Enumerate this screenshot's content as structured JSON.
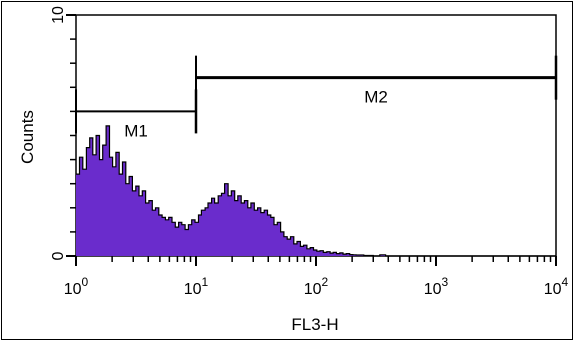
{
  "chart_data": {
    "type": "area",
    "xlabel": "FL3-H",
    "ylabel": "Counts",
    "x_scale": "log",
    "xlim": [
      1,
      10000
    ],
    "ylim": [
      0,
      10
    ],
    "x_ticks": [
      {
        "value": 1,
        "base": "10",
        "exp": "0"
      },
      {
        "value": 10,
        "base": "10",
        "exp": "1"
      },
      {
        "value": 100,
        "base": "10",
        "exp": "2"
      },
      {
        "value": 1000,
        "base": "10",
        "exp": "3"
      },
      {
        "value": 10000,
        "base": "10",
        "exp": "4"
      }
    ],
    "y_ticks": [
      {
        "value": 0,
        "label": "0"
      },
      {
        "value": 10,
        "label": "10"
      }
    ],
    "fill_color": "#6a2ccc",
    "markers": [
      {
        "label": "M1",
        "start": 1,
        "end": 10,
        "level": 6.0
      },
      {
        "label": "M2",
        "start": 10,
        "end": 10000,
        "level": 7.4
      }
    ],
    "series": [
      {
        "values": [
          {
            "x": 1.0,
            "y": 3.4
          },
          {
            "x": 1.07,
            "y": 4.1
          },
          {
            "x": 1.14,
            "y": 3.6
          },
          {
            "x": 1.22,
            "y": 4.5
          },
          {
            "x": 1.3,
            "y": 4.9
          },
          {
            "x": 1.38,
            "y": 4.2
          },
          {
            "x": 1.47,
            "y": 5.0
          },
          {
            "x": 1.57,
            "y": 4.0
          },
          {
            "x": 1.67,
            "y": 4.6
          },
          {
            "x": 1.78,
            "y": 5.4
          },
          {
            "x": 1.9,
            "y": 4.1
          },
          {
            "x": 2.02,
            "y": 3.7
          },
          {
            "x": 2.15,
            "y": 4.3
          },
          {
            "x": 2.29,
            "y": 3.4
          },
          {
            "x": 2.44,
            "y": 3.9
          },
          {
            "x": 2.6,
            "y": 3.0
          },
          {
            "x": 2.77,
            "y": 3.3
          },
          {
            "x": 2.95,
            "y": 2.7
          },
          {
            "x": 3.15,
            "y": 2.9
          },
          {
            "x": 3.35,
            "y": 2.5
          },
          {
            "x": 3.57,
            "y": 2.7
          },
          {
            "x": 3.8,
            "y": 2.2
          },
          {
            "x": 4.05,
            "y": 2.3
          },
          {
            "x": 4.32,
            "y": 1.9
          },
          {
            "x": 4.6,
            "y": 2.0
          },
          {
            "x": 4.9,
            "y": 1.7
          },
          {
            "x": 5.22,
            "y": 1.6
          },
          {
            "x": 5.56,
            "y": 1.5
          },
          {
            "x": 5.92,
            "y": 1.6
          },
          {
            "x": 6.31,
            "y": 1.4
          },
          {
            "x": 6.72,
            "y": 1.2
          },
          {
            "x": 7.16,
            "y": 1.4
          },
          {
            "x": 7.62,
            "y": 1.3
          },
          {
            "x": 8.12,
            "y": 1.1
          },
          {
            "x": 8.65,
            "y": 1.3
          },
          {
            "x": 9.21,
            "y": 1.5
          },
          {
            "x": 9.81,
            "y": 1.4
          },
          {
            "x": 10.5,
            "y": 1.7
          },
          {
            "x": 11.1,
            "y": 1.9
          },
          {
            "x": 11.9,
            "y": 2.0
          },
          {
            "x": 12.6,
            "y": 2.2
          },
          {
            "x": 13.5,
            "y": 2.4
          },
          {
            "x": 14.3,
            "y": 2.2
          },
          {
            "x": 15.3,
            "y": 2.5
          },
          {
            "x": 16.3,
            "y": 2.6
          },
          {
            "x": 17.3,
            "y": 3.0
          },
          {
            "x": 18.5,
            "y": 2.5
          },
          {
            "x": 19.7,
            "y": 2.7
          },
          {
            "x": 21.0,
            "y": 2.3
          },
          {
            "x": 22.3,
            "y": 2.5
          },
          {
            "x": 23.8,
            "y": 2.2
          },
          {
            "x": 25.3,
            "y": 2.3
          },
          {
            "x": 27.0,
            "y": 2.0
          },
          {
            "x": 28.7,
            "y": 2.2
          },
          {
            "x": 30.6,
            "y": 1.9
          },
          {
            "x": 32.6,
            "y": 2.0
          },
          {
            "x": 34.7,
            "y": 1.8
          },
          {
            "x": 37.0,
            "y": 1.9
          },
          {
            "x": 39.4,
            "y": 1.7
          },
          {
            "x": 42.0,
            "y": 1.6
          },
          {
            "x": 44.7,
            "y": 1.3
          },
          {
            "x": 47.6,
            "y": 1.4
          },
          {
            "x": 50.7,
            "y": 1.0
          },
          {
            "x": 54.0,
            "y": 0.8
          },
          {
            "x": 57.5,
            "y": 0.7
          },
          {
            "x": 61.3,
            "y": 0.8
          },
          {
            "x": 65.3,
            "y": 0.5
          },
          {
            "x": 69.5,
            "y": 0.6
          },
          {
            "x": 74.1,
            "y": 0.4
          },
          {
            "x": 78.9,
            "y": 0.45
          },
          {
            "x": 84.0,
            "y": 0.3
          },
          {
            "x": 89.5,
            "y": 0.35
          },
          {
            "x": 95.3,
            "y": 0.25
          },
          {
            "x": 101.5,
            "y": 0.2
          },
          {
            "x": 108,
            "y": 0.22
          },
          {
            "x": 115,
            "y": 0.15
          },
          {
            "x": 123,
            "y": 0.18
          },
          {
            "x": 131,
            "y": 0.12
          },
          {
            "x": 139,
            "y": 0.15
          },
          {
            "x": 148,
            "y": 0.1
          },
          {
            "x": 158,
            "y": 0.13
          },
          {
            "x": 168,
            "y": 0.08
          },
          {
            "x": 179,
            "y": 0.1
          },
          {
            "x": 191,
            "y": 0.06
          },
          {
            "x": 203,
            "y": 0.05
          },
          {
            "x": 216,
            "y": 0.04
          },
          {
            "x": 250,
            "y": 0.02
          },
          {
            "x": 300,
            "y": 0.0
          },
          {
            "x": 340,
            "y": 0.05
          },
          {
            "x": 380,
            "y": 0.0
          },
          {
            "x": 10000,
            "y": 0.0
          }
        ]
      }
    ]
  }
}
